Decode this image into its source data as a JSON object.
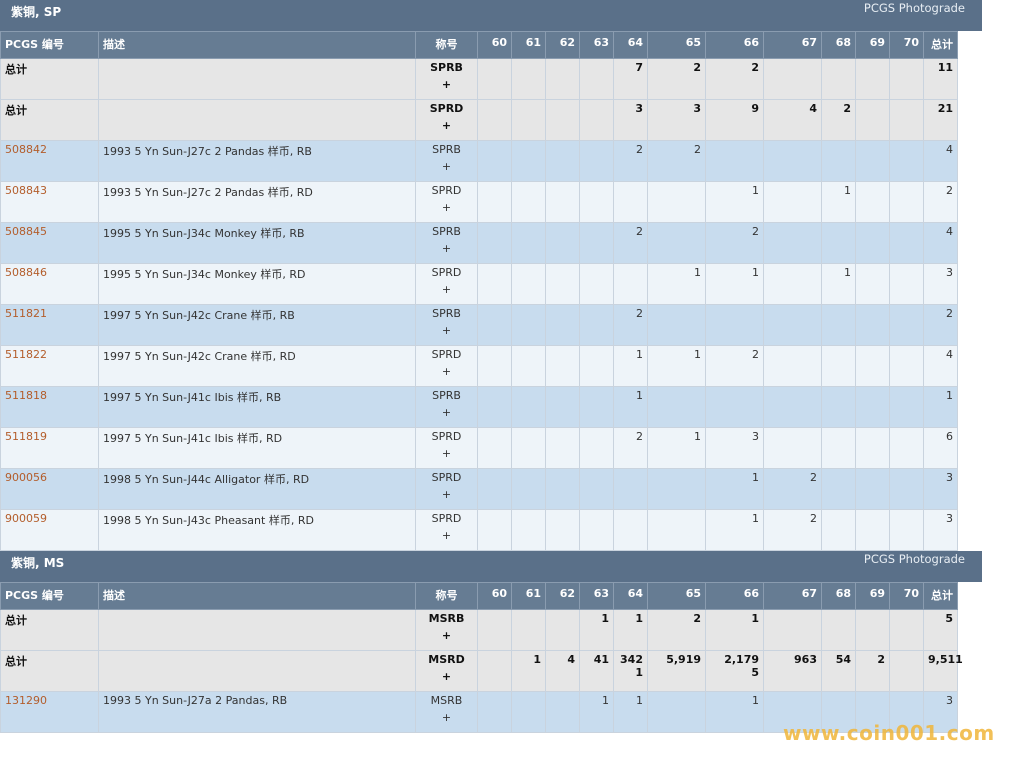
{
  "columns": {
    "pcgs": "PCGS 编号",
    "desc": "描述",
    "code": "称号",
    "grades": [
      "60",
      "61",
      "62",
      "63",
      "64",
      "65",
      "66",
      "67",
      "68",
      "69",
      "70"
    ],
    "total": "总计"
  },
  "sections": [
    {
      "title": "紫铜, SP",
      "photograde": "PCGS Photograde",
      "totals": [
        {
          "label": "总计",
          "code": "SPRB",
          "plus": "+",
          "g": [
            "",
            "",
            "",
            "",
            "7",
            "2",
            "2",
            "",
            "",
            "",
            ""
          ],
          "total": "11"
        },
        {
          "label": "总计",
          "code": "SPRD",
          "plus": "+",
          "g": [
            "",
            "",
            "",
            "",
            "3",
            "3",
            "9",
            "4",
            "2",
            "",
            ""
          ],
          "total": "21"
        }
      ],
      "rows": [
        {
          "pcgs": "508842",
          "desc": "1993 5 Yn Sun-J27c 2 Pandas 样币, RB",
          "code": "SPRB",
          "plus": "+",
          "g": [
            "",
            "",
            "",
            "",
            "2",
            "2",
            "",
            "",
            "",
            "",
            ""
          ],
          "total": "4"
        },
        {
          "pcgs": "508843",
          "desc": "1993 5 Yn Sun-J27c 2 Pandas 样币, RD",
          "code": "SPRD",
          "plus": "+",
          "g": [
            "",
            "",
            "",
            "",
            "",
            "",
            "1",
            "",
            "1",
            "",
            ""
          ],
          "total": "2"
        },
        {
          "pcgs": "508845",
          "desc": "1995 5 Yn Sun-J34c Monkey 样币, RB",
          "code": "SPRB",
          "plus": "+",
          "g": [
            "",
            "",
            "",
            "",
            "2",
            "",
            "2",
            "",
            "",
            "",
            ""
          ],
          "total": "4"
        },
        {
          "pcgs": "508846",
          "desc": "1995 5 Yn Sun-J34c Monkey 样币, RD",
          "code": "SPRD",
          "plus": "+",
          "g": [
            "",
            "",
            "",
            "",
            "",
            "1",
            "1",
            "",
            "1",
            "",
            ""
          ],
          "total": "3"
        },
        {
          "pcgs": "511821",
          "desc": "1997 5 Yn Sun-J42c Crane 样币, RB",
          "code": "SPRB",
          "plus": "+",
          "g": [
            "",
            "",
            "",
            "",
            "2",
            "",
            "",
            "",
            "",
            "",
            ""
          ],
          "total": "2"
        },
        {
          "pcgs": "511822",
          "desc": "1997 5 Yn Sun-J42c Crane 样币, RD",
          "code": "SPRD",
          "plus": "+",
          "g": [
            "",
            "",
            "",
            "",
            "1",
            "1",
            "2",
            "",
            "",
            "",
            ""
          ],
          "total": "4"
        },
        {
          "pcgs": "511818",
          "desc": "1997 5 Yn Sun-J41c Ibis 样币, RB",
          "code": "SPRB",
          "plus": "+",
          "g": [
            "",
            "",
            "",
            "",
            "1",
            "",
            "",
            "",
            "",
            "",
            ""
          ],
          "total": "1"
        },
        {
          "pcgs": "511819",
          "desc": "1997 5 Yn Sun-J41c Ibis 样币, RD",
          "code": "SPRD",
          "plus": "+",
          "g": [
            "",
            "",
            "",
            "",
            "2",
            "1",
            "3",
            "",
            "",
            "",
            ""
          ],
          "total": "6"
        },
        {
          "pcgs": "900056",
          "desc": "1998 5 Yn Sun-J44c Alligator 样币, RD",
          "code": "SPRD",
          "plus": "+",
          "g": [
            "",
            "",
            "",
            "",
            "",
            "",
            "1",
            "2",
            "",
            "",
            ""
          ],
          "total": "3"
        },
        {
          "pcgs": "900059",
          "desc": "1998 5 Yn Sun-J43c Pheasant 样币, RD",
          "code": "SPRD",
          "plus": "+",
          "g": [
            "",
            "",
            "",
            "",
            "",
            "",
            "1",
            "2",
            "",
            "",
            ""
          ],
          "total": "3"
        }
      ]
    },
    {
      "title": "紫铜, MS",
      "photograde": "PCGS Photograde",
      "totals": [
        {
          "label": "总计",
          "code": "MSRB",
          "plus": "+",
          "g": [
            "",
            "",
            "",
            "1",
            "1",
            "2",
            "1",
            "",
            "",
            "",
            ""
          ],
          "total": "5"
        },
        {
          "label": "总计",
          "code": "MSRD",
          "plus": "+",
          "g": [
            "",
            "1",
            "4",
            "41",
            "342\n1",
            "5,919",
            "2,179\n5",
            "963",
            "54",
            "2",
            ""
          ],
          "total": "9,511"
        }
      ],
      "rows": [
        {
          "pcgs": "131290",
          "desc": "1993 5 Yn Sun-J27a 2 Pandas, RB",
          "code": "MSRB",
          "plus": "+",
          "g": [
            "",
            "",
            "",
            "1",
            "1",
            "",
            "1",
            "",
            "",
            "",
            ""
          ],
          "total": "3"
        }
      ]
    }
  ],
  "watermark": "www.coin001.com"
}
